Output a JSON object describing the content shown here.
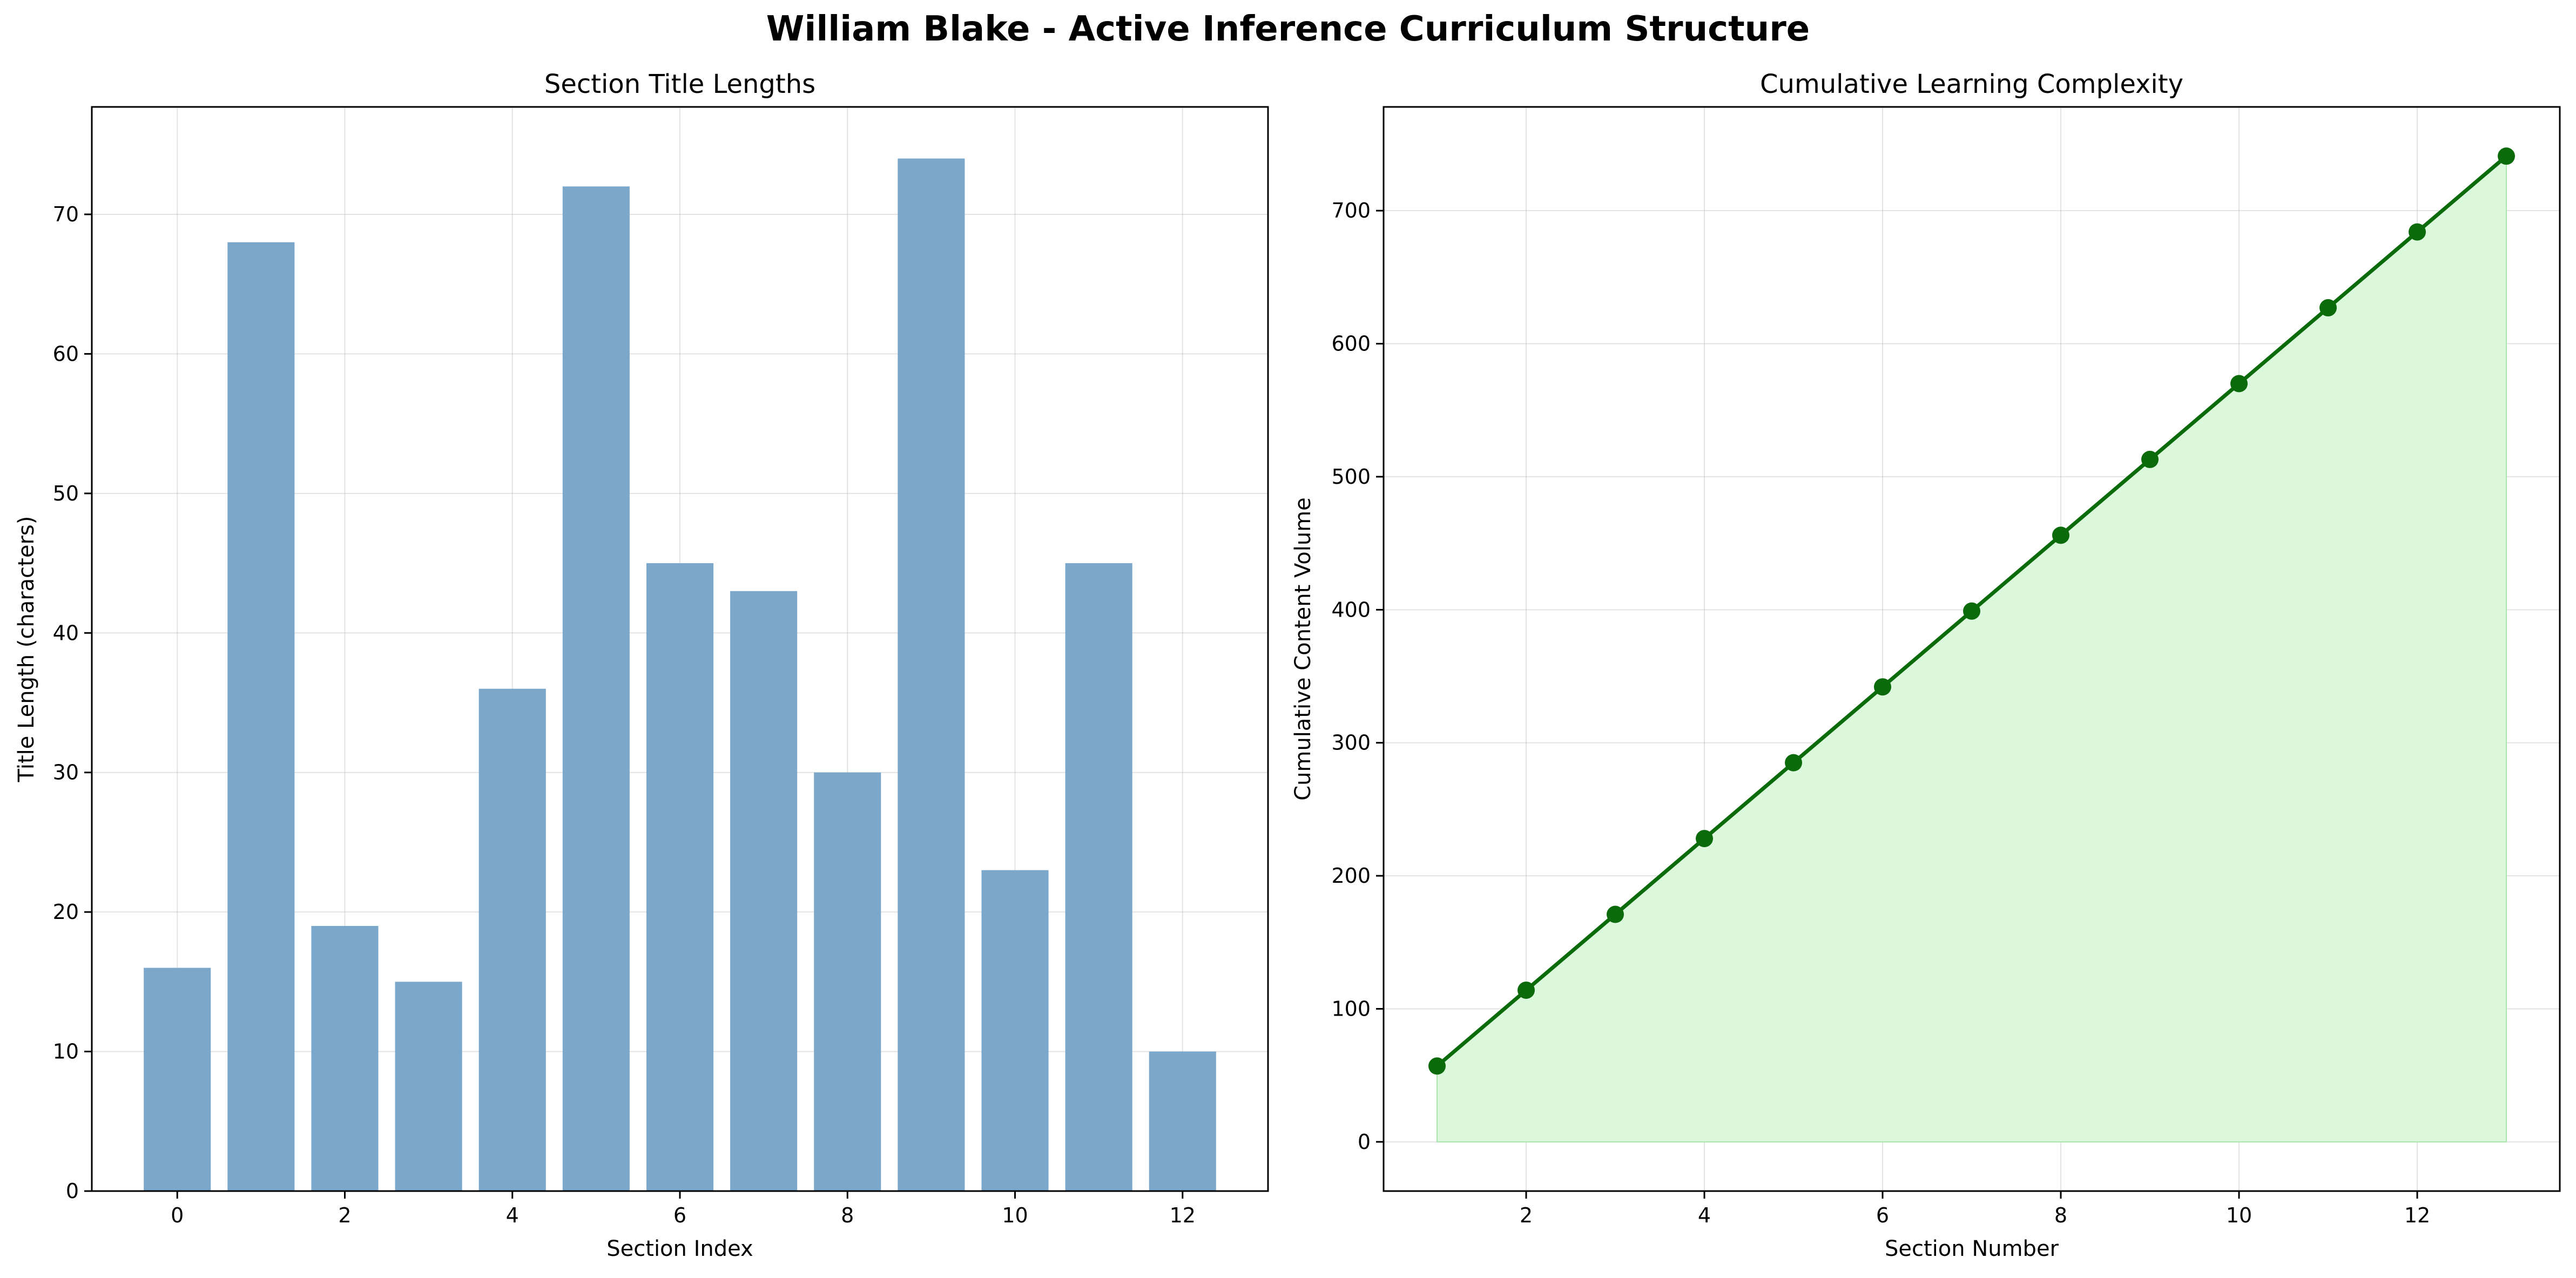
{
  "figure": {
    "title": "William Blake - Active Inference Curriculum Structure"
  },
  "chart_data": [
    {
      "type": "bar",
      "title": "Section Title Lengths",
      "xlabel": "Section Index",
      "ylabel": "Title Length (characters)",
      "categories": [
        0,
        1,
        2,
        3,
        4,
        5,
        6,
        7,
        8,
        9,
        10,
        11,
        12
      ],
      "values": [
        16,
        68,
        19,
        15,
        36,
        72,
        45,
        43,
        30,
        74,
        23,
        45,
        10
      ],
      "xlim": [
        -1.02,
        13.02
      ],
      "ylim": [
        0,
        77.7
      ],
      "xticks": [
        0,
        2,
        4,
        6,
        8,
        10,
        12
      ],
      "yticks": [
        0,
        10,
        20,
        30,
        40,
        50,
        60,
        70
      ],
      "grid": true,
      "bar_color": "#7ba7cb"
    },
    {
      "type": "area",
      "title": "Cumulative Learning Complexity",
      "xlabel": "Section Number",
      "ylabel": "Cumulative Content Volume",
      "x": [
        1,
        2,
        3,
        4,
        5,
        6,
        7,
        8,
        9,
        10,
        11,
        12,
        13
      ],
      "y": [
        57,
        114,
        171,
        228,
        285,
        342,
        399,
        456,
        513,
        570,
        627,
        684,
        741
      ],
      "xlim": [
        0.4,
        13.6
      ],
      "ylim": [
        -37,
        778
      ],
      "xticks": [
        2,
        4,
        6,
        8,
        10,
        12
      ],
      "yticks": [
        0,
        100,
        200,
        300,
        400,
        500,
        600,
        700
      ],
      "grid": true,
      "line_color": "#0b6b0b",
      "fill_color": "#dbf7dc"
    }
  ]
}
